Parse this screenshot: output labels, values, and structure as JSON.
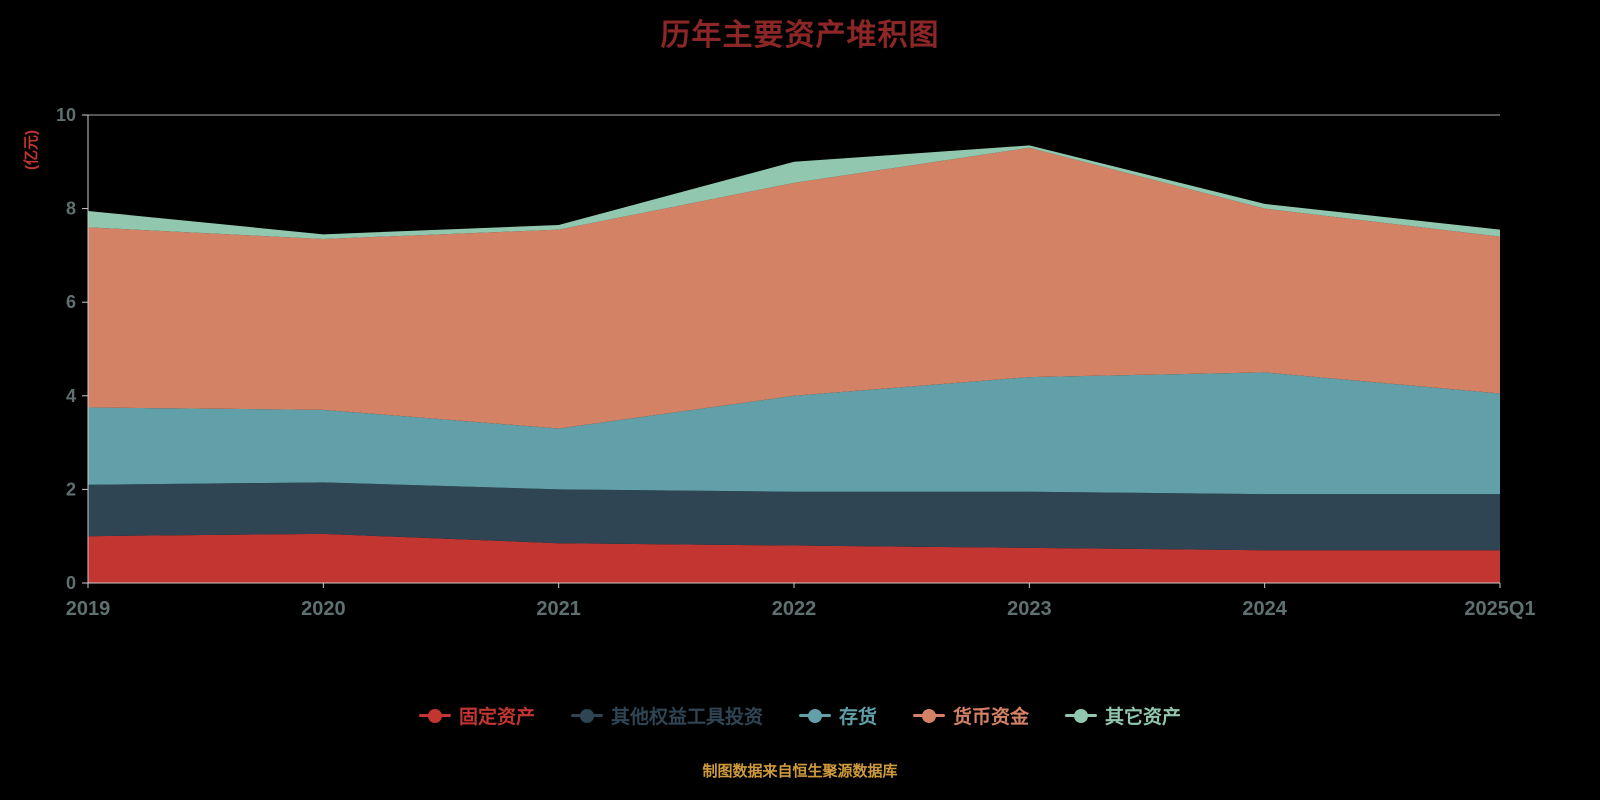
{
  "chart_data": {
    "type": "area",
    "stacked": true,
    "title": "历年主要资产堆积图",
    "y_unit_label": "(亿元)",
    "footer": "制图数据来自恒生聚源数据库",
    "categories": [
      "2019",
      "2020",
      "2021",
      "2022",
      "2023",
      "2024",
      "2025Q1"
    ],
    "series": [
      {
        "name": "固定资产",
        "color": "#c23531",
        "values": [
          1.0,
          1.05,
          0.85,
          0.8,
          0.75,
          0.7,
          0.7
        ]
      },
      {
        "name": "其他权益工具投资",
        "color": "#2f4554",
        "values": [
          1.1,
          1.1,
          1.15,
          1.15,
          1.2,
          1.2,
          1.2
        ]
      },
      {
        "name": "存货",
        "color": "#61a0a8",
        "values": [
          1.65,
          1.55,
          1.3,
          2.05,
          2.45,
          2.6,
          2.15
        ]
      },
      {
        "name": "货币资金",
        "color": "#d48265",
        "values": [
          3.85,
          3.65,
          4.25,
          4.55,
          4.9,
          3.5,
          3.35
        ]
      },
      {
        "name": "其它资产",
        "color": "#91c7ae",
        "values": [
          0.35,
          0.1,
          0.1,
          0.45,
          0.05,
          0.1,
          0.15
        ]
      }
    ],
    "ylim": [
      0,
      10
    ],
    "y_ticks": [
      0,
      2,
      4,
      6,
      8,
      10
    ],
    "grid": "top-line-only",
    "legend_position": "bottom",
    "colors": {
      "background": "#000000",
      "title": "#8d2626",
      "axis_line": "#cccccc",
      "axis_label": "#5f7070",
      "y_unit_label": "#c23531",
      "footer": "#cf9a3d"
    }
  }
}
